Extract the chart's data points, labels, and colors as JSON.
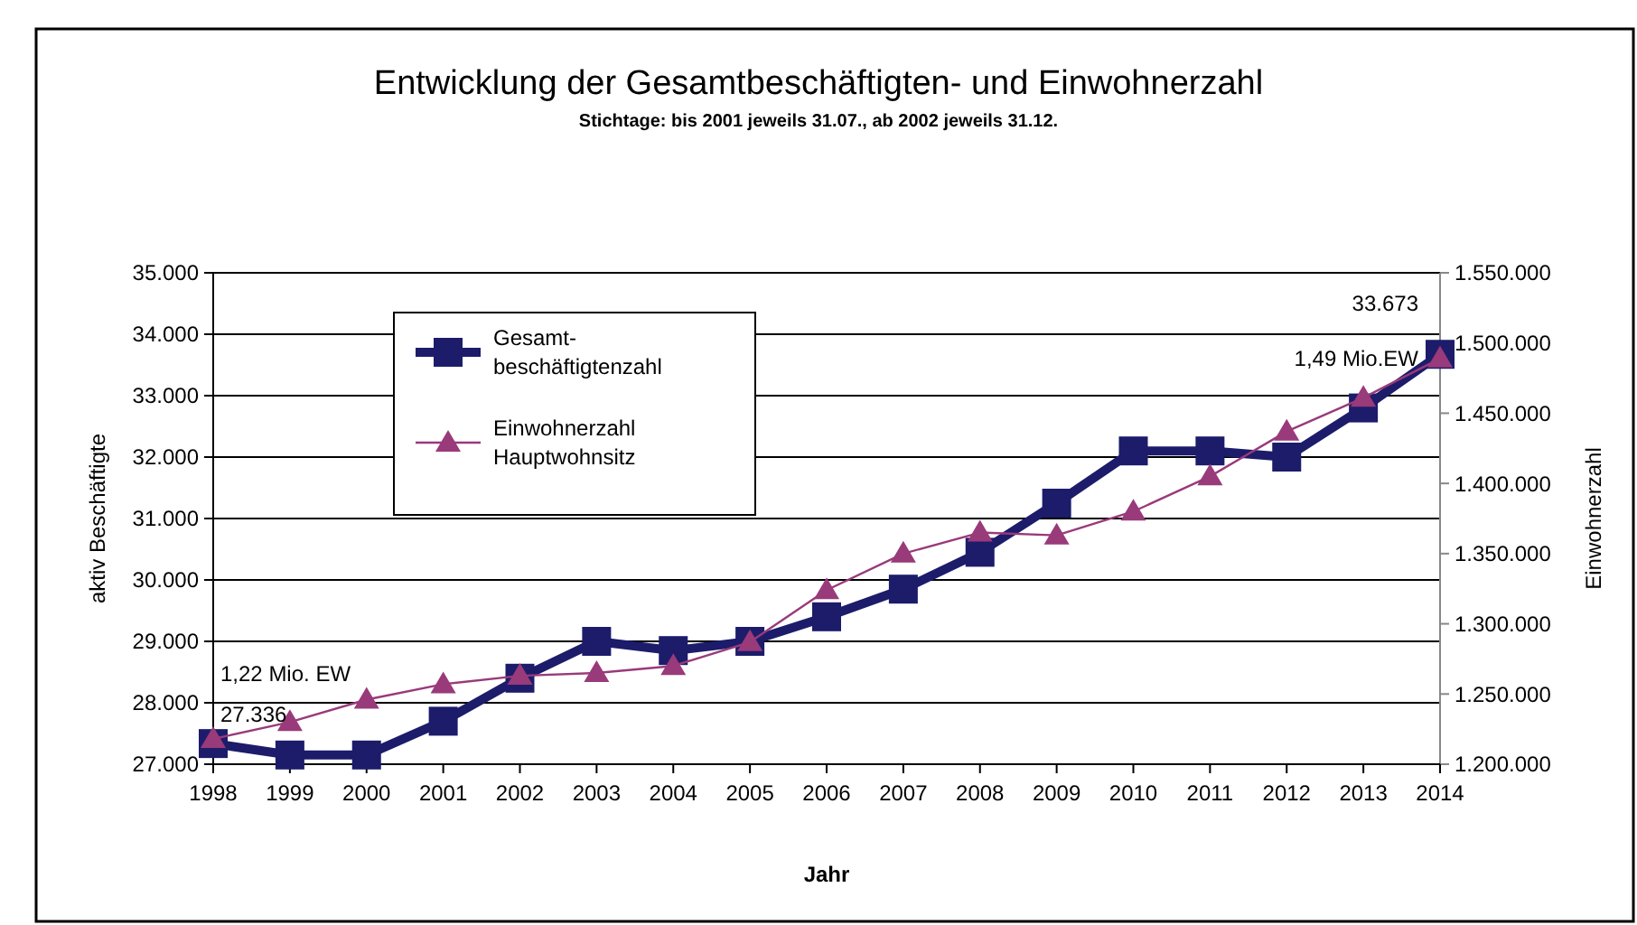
{
  "chart_data": {
    "type": "line",
    "title": "Entwicklung der Gesamtbeschäftigten- und Einwohnerzahl",
    "subtitle": "Stichtage: bis 2001 jeweils 31.07., ab 2002 jeweils 31.12.",
    "xlabel": "Jahr",
    "ylabel": "aktiv Beschäftigte",
    "y2label": "Einwohnerzahl",
    "categories": [
      "1998",
      "1999",
      "2000",
      "2001",
      "2002",
      "2003",
      "2004",
      "2005",
      "2006",
      "2007",
      "2008",
      "2009",
      "2010",
      "2011",
      "2012",
      "2013",
      "2014"
    ],
    "series": [
      {
        "name": "Gesamt-beschäftigtenzahl",
        "color": "#1c1c6b",
        "marker": "square",
        "values": [
          27336,
          27150,
          27150,
          27700,
          28400,
          29000,
          28850,
          29000,
          29400,
          29850,
          30450,
          31250,
          32100,
          32100,
          32000,
          32800,
          33673
        ]
      },
      {
        "name": "Einwohnerzahl Hauptwohnsitz",
        "color": "#993a7a",
        "marker": "triangle",
        "axis": "y2",
        "values": [
          1218000,
          1230000,
          1246000,
          1257000,
          1263000,
          1265000,
          1270000,
          1287000,
          1324000,
          1350000,
          1365000,
          1363000,
          1380000,
          1405000,
          1437000,
          1461000,
          1489000
        ]
      }
    ],
    "ylim": [
      27000,
      35000
    ],
    "yticks": [
      {
        "value": 27000,
        "label": "27.000"
      },
      {
        "value": 28000,
        "label": "28.000"
      },
      {
        "value": 29000,
        "label": "29.000"
      },
      {
        "value": 30000,
        "label": "30.000"
      },
      {
        "value": 31000,
        "label": "31.000"
      },
      {
        "value": 32000,
        "label": "32.000"
      },
      {
        "value": 33000,
        "label": "33.000"
      },
      {
        "value": 34000,
        "label": "34.000"
      },
      {
        "value": 35000,
        "label": "35.000"
      }
    ],
    "y2lim": [
      1200000,
      1550000
    ],
    "y2ticks": [
      {
        "value": 1200000,
        "label": "1.200.000"
      },
      {
        "value": 1250000,
        "label": "1.250.000"
      },
      {
        "value": 1300000,
        "label": "1.300.000"
      },
      {
        "value": 1350000,
        "label": "1.350.000"
      },
      {
        "value": 1400000,
        "label": "1.400.000"
      },
      {
        "value": 1450000,
        "label": "1.450.000"
      },
      {
        "value": 1500000,
        "label": "1.500.000"
      },
      {
        "value": 1550000,
        "label": "1.550.000"
      }
    ],
    "grid": "y",
    "legend": "top left",
    "annotations": [
      "1,22 Mio. EW",
      {
        "text": "27.336",
        "x": "1998",
        "y": 27336
      },
      {
        "text": "33.673",
        "x": "2014",
        "y": 33673
      },
      "1,49 Mio.EW"
    ]
  }
}
